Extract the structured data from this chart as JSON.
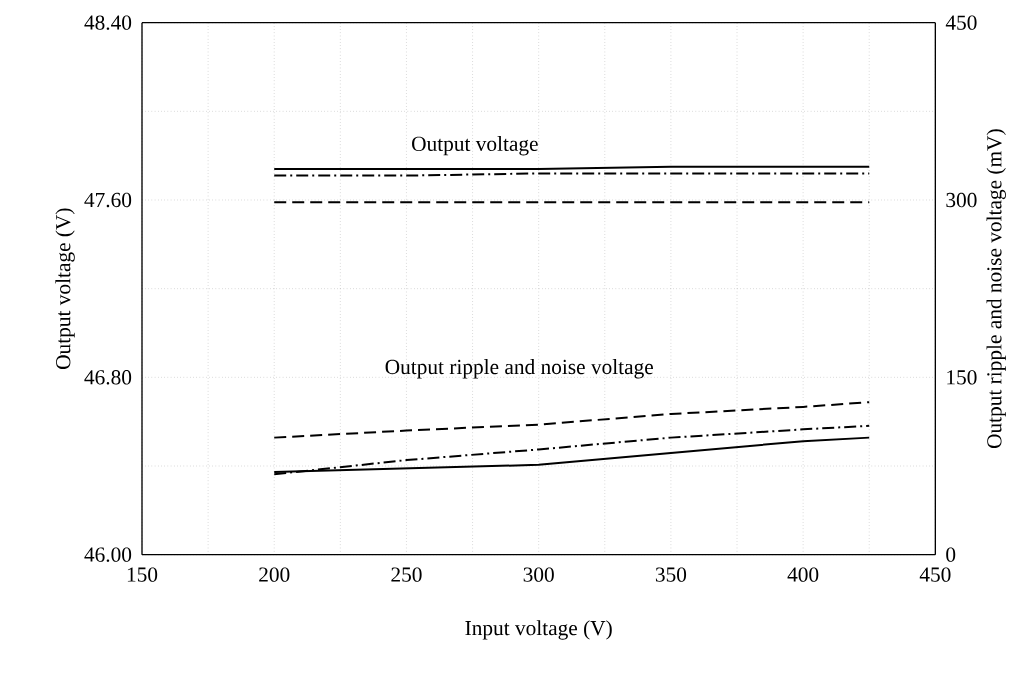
{
  "chart_data": {
    "type": "line",
    "xlabel": "Input voltage (V)",
    "ylabel": "Output voltage (V)",
    "y2label": "Output ripple and noise voltage (mV)",
    "annotations": [
      "Output voltage",
      "Output ripple and noise voltage"
    ],
    "x": [
      200,
      250,
      300,
      350,
      400,
      425
    ],
    "xlim": [
      150,
      450
    ],
    "xticks": [
      150,
      200,
      250,
      300,
      350,
      400,
      450
    ],
    "ylim": [
      46.0,
      48.4
    ],
    "yticks": [
      {
        "value": 46.0,
        "label": "46.00"
      },
      {
        "value": 46.8,
        "label": "46.80"
      },
      {
        "value": 47.6,
        "label": "47.60"
      },
      {
        "value": 48.4,
        "label": "48.40"
      }
    ],
    "y2lim": [
      0,
      450
    ],
    "y2ticks": [
      0,
      150,
      300,
      450
    ],
    "grid": true,
    "marker": "none",
    "series": [
      {
        "color": "#000000",
        "line_style": "solid",
        "values": [
          47.74,
          47.74,
          47.74,
          47.75,
          47.75,
          47.75
        ]
      },
      {
        "color": "#000000",
        "line_style": "dashdot",
        "values": [
          47.71,
          47.71,
          47.72,
          47.72,
          47.72,
          47.72
        ]
      },
      {
        "color": "#000000",
        "line_style": "dashed",
        "values": [
          47.59,
          47.59,
          47.59,
          47.59,
          47.59,
          47.59
        ]
      },
      {
        "color": "#000000",
        "line_style": "solid",
        "axis": "y2",
        "values": [
          70,
          73,
          76,
          86,
          96,
          99
        ]
      },
      {
        "color": "#000000",
        "line_style": "dashdot",
        "axis": "y2",
        "values": [
          68,
          80,
          89,
          99,
          106,
          109
        ]
      },
      {
        "color": "#000000",
        "line_style": "dashed",
        "axis": "y2",
        "values": [
          99,
          105,
          110,
          119,
          125,
          129
        ]
      }
    ]
  }
}
